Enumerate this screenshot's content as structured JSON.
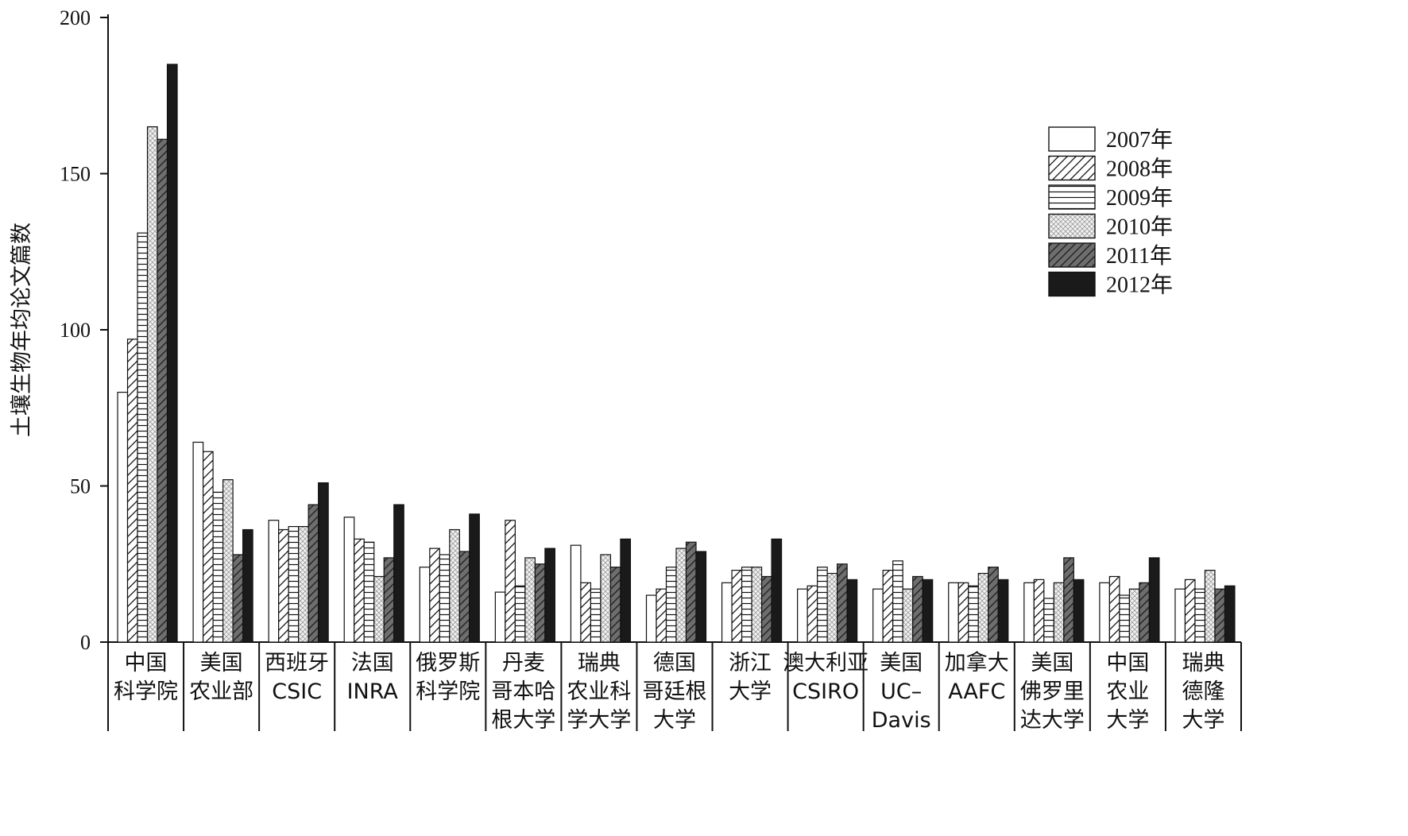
{
  "chart_data": {
    "type": "bar",
    "title": "",
    "xlabel": "",
    "ylabel": "土壤生物年均论文篇数",
    "ylim": [
      0,
      200
    ],
    "yticks": [
      0,
      50,
      100,
      150,
      200
    ],
    "grid": false,
    "legend_position": "top-right",
    "categories": [
      [
        "中国",
        "科学院"
      ],
      [
        "美国",
        "农业部"
      ],
      [
        "西班牙",
        "CSIC"
      ],
      [
        "法国",
        "INRA"
      ],
      [
        "俄罗斯",
        "科学院"
      ],
      [
        "丹麦",
        "哥本哈",
        "根大学"
      ],
      [
        "瑞典",
        "农业科",
        "学大学"
      ],
      [
        "德国",
        "哥廷根",
        "大学"
      ],
      [
        "浙江",
        "大学"
      ],
      [
        "澳大利亚",
        "CSIRO"
      ],
      [
        "美国",
        "UC–",
        "Davis"
      ],
      [
        "加拿大",
        "AAFC"
      ],
      [
        "美国",
        "佛罗里",
        "达大学"
      ],
      [
        "中国",
        "农业",
        "大学"
      ],
      [
        "瑞典",
        "德隆",
        "大学"
      ]
    ],
    "series": [
      {
        "name": "2007年",
        "pattern": "white",
        "values": [
          80,
          64,
          39,
          40,
          24,
          16,
          31,
          15,
          19,
          17,
          17,
          19,
          19,
          19,
          17
        ]
      },
      {
        "name": "2008年",
        "pattern": "diagonal",
        "values": [
          97,
          61,
          36,
          33,
          30,
          39,
          19,
          17,
          23,
          18,
          23,
          19,
          20,
          21,
          20
        ]
      },
      {
        "name": "2009年",
        "pattern": "horizontal",
        "values": [
          131,
          48,
          37,
          32,
          28,
          18,
          17,
          24,
          24,
          24,
          26,
          18,
          14,
          15,
          17
        ]
      },
      {
        "name": "2010年",
        "pattern": "crosshatch",
        "values": [
          165,
          52,
          37,
          21,
          36,
          27,
          28,
          30,
          24,
          22,
          17,
          22,
          19,
          17,
          23
        ]
      },
      {
        "name": "2011年",
        "pattern": "dark-diagonal",
        "values": [
          161,
          28,
          44,
          27,
          29,
          25,
          24,
          32,
          21,
          25,
          21,
          24,
          27,
          19,
          17
        ]
      },
      {
        "name": "2012年",
        "pattern": "black",
        "values": [
          185,
          36,
          51,
          44,
          41,
          30,
          33,
          29,
          33,
          20,
          20,
          20,
          20,
          27,
          18
        ]
      }
    ]
  }
}
